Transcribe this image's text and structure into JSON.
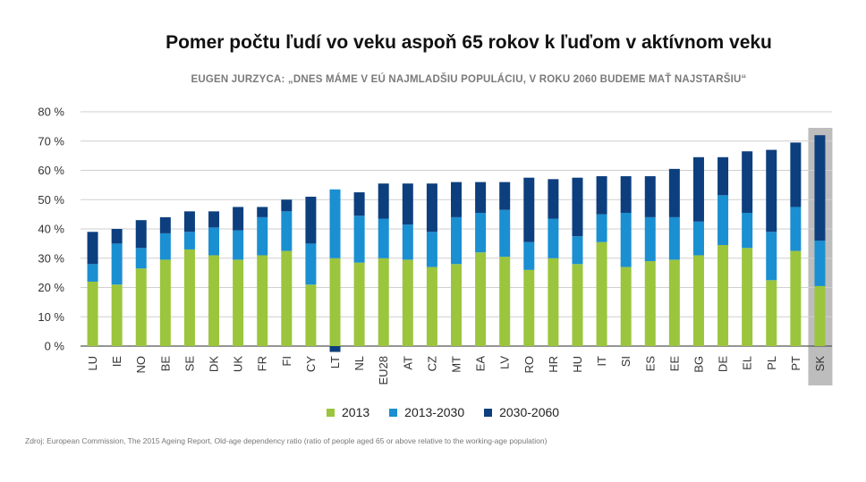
{
  "chart_data": {
    "type": "bar",
    "stacked": true,
    "title": "Pomer počtu ľudí vo veku aspoň 65 rokov k ľuďom v aktívnom veku",
    "subtitle": "EUGEN JURZYCA: „DNES MÁME V EÚ NAJMLADŠIU POPULÁCIU, V ROKU 2060 BUDEME MAŤ NAJSTARŠIU“",
    "source": "Zdroj: European Commission, The 2015 Ageing Report, Old-age dependency ratio (ratio of people aged 65 or above relative to the working-age population)",
    "ylim": [
      0,
      80
    ],
    "yticks": [
      0,
      10,
      20,
      30,
      40,
      50,
      60,
      70,
      80
    ],
    "ytick_labels": [
      "0 %",
      "10 %",
      "20 %",
      "30 %",
      "40 %",
      "50 %",
      "60 %",
      "70 %",
      "80 %"
    ],
    "grid": true,
    "legend_position": "bottom",
    "highlight_category": "SK",
    "categories": [
      "LU",
      "IE",
      "NO",
      "BE",
      "SE",
      "DK",
      "UK",
      "FR",
      "FI",
      "CY",
      "LT",
      "NL",
      "EU28",
      "AT",
      "CZ",
      "MT",
      "EA",
      "LV",
      "RO",
      "HR",
      "HU",
      "IT",
      "SI",
      "ES",
      "EE",
      "BG",
      "DE",
      "EL",
      "PL",
      "PT",
      "SK"
    ],
    "series": [
      {
        "name": "2013",
        "color": "#9bc53d",
        "values": [
          22,
          21,
          26.5,
          29.5,
          33,
          31,
          29.5,
          31,
          32.5,
          21,
          30,
          28.5,
          30,
          29.5,
          27,
          28,
          32,
          30.5,
          26,
          30,
          28,
          35.5,
          27,
          29,
          29.5,
          31,
          34.5,
          33.5,
          22.5,
          32.5,
          20.5
        ]
      },
      {
        "name": "2013-2030",
        "color": "#1a8fd1",
        "values": [
          6,
          14,
          7,
          9,
          6,
          9.5,
          10,
          13,
          13.5,
          14,
          23.5,
          16,
          13.5,
          12,
          12,
          16,
          13.5,
          16,
          9.5,
          13.5,
          9.5,
          9.5,
          18.5,
          15,
          14.5,
          11.5,
          17,
          12,
          16.5,
          15,
          15.5
        ]
      },
      {
        "name": "2030-2060",
        "color": "#0d3f7e",
        "values": [
          11,
          5,
          9.5,
          5.5,
          7,
          5.5,
          8,
          3.5,
          4,
          16,
          -2,
          8,
          12,
          14,
          16.5,
          12,
          10.5,
          9.5,
          22,
          13.5,
          20,
          13,
          12.5,
          14,
          16.5,
          22,
          13,
          21,
          28,
          22,
          36
        ]
      }
    ]
  }
}
